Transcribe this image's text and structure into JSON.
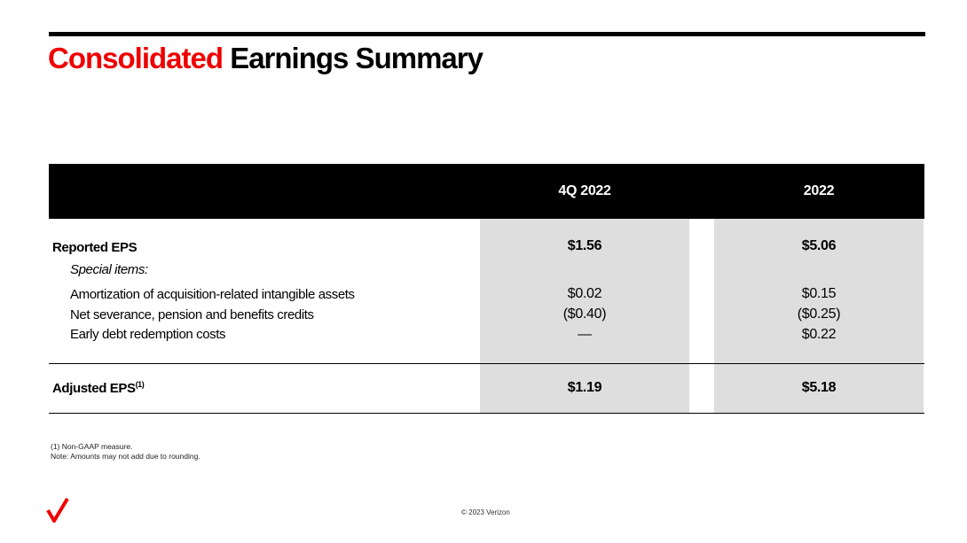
{
  "title": {
    "accent_word": "Consolidated",
    "rest": "Earnings Summary"
  },
  "table": {
    "columns": [
      "4Q 2022",
      "2022"
    ],
    "rows": [
      {
        "label": "Reported EPS",
        "q": "$1.56",
        "y": "$5.06"
      },
      {
        "label": "Special items:"
      },
      {
        "label": "Amortization of acquisition-related intangible assets",
        "q": "$0.02",
        "y": "$0.15"
      },
      {
        "label": "Net severance, pension and benefits credits",
        "q": "($0.40)",
        "y": "($0.25)"
      },
      {
        "label": "Early debt redemption costs",
        "q": "—",
        "y": "$0.22"
      },
      {
        "label": "Adjusted EPS",
        "footnote_marker": "(1)",
        "q": "$1.19",
        "y": "$5.18"
      }
    ]
  },
  "footnotes": [
    "(1) Non-GAAP measure.",
    "Note: Amounts may not add due to rounding."
  ],
  "footer": {
    "copyright": "© 2023 Verizon"
  },
  "colors": {
    "brand_red": "#ee0000",
    "header_black": "#000000",
    "cell_shade": "#dedede"
  },
  "icons": {
    "logo": "verizon-checkmark-icon"
  }
}
